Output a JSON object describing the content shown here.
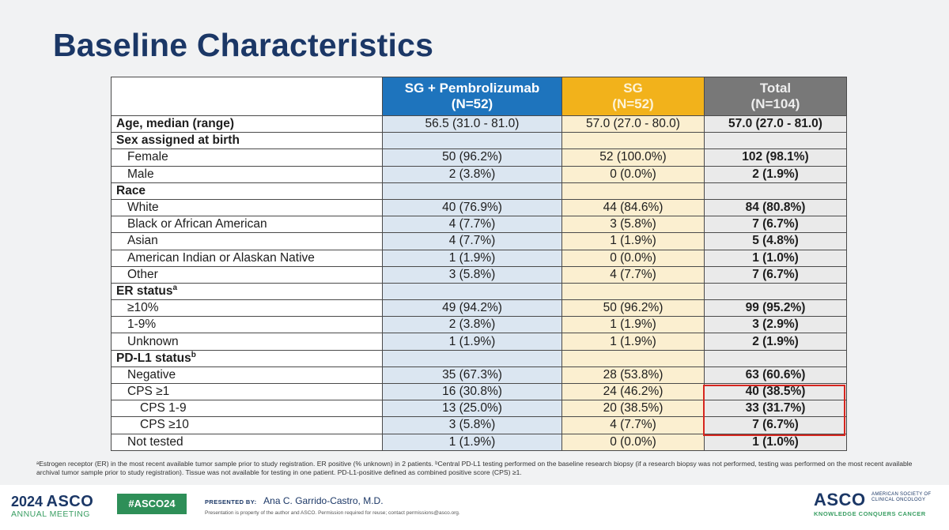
{
  "title": "Baseline Characteristics",
  "columns": [
    {
      "name": "SG + Pembrolizumab",
      "n": "(N=52)"
    },
    {
      "name": "SG",
      "n": "(N=52)"
    },
    {
      "name": "Total",
      "n": "(N=104)"
    }
  ],
  "rows": [
    {
      "label": "Age, median (range)",
      "level": "head",
      "values": [
        "56.5 (31.0 - 81.0)",
        "57.0 (27.0 - 80.0)",
        "57.0 (27.0 - 81.0)"
      ]
    },
    {
      "label": "Sex assigned at birth",
      "level": "head",
      "values": [
        "",
        "",
        ""
      ]
    },
    {
      "label": "Female",
      "level": "l1",
      "values": [
        "50 (96.2%)",
        "52 (100.0%)",
        "102 (98.1%)"
      ]
    },
    {
      "label": "Male",
      "level": "l1",
      "values": [
        "2 (3.8%)",
        "0 (0.0%)",
        "2 (1.9%)"
      ]
    },
    {
      "label": "Race",
      "level": "head",
      "values": [
        "",
        "",
        ""
      ]
    },
    {
      "label": "White",
      "level": "l1",
      "values": [
        "40 (76.9%)",
        "44 (84.6%)",
        "84 (80.8%)"
      ]
    },
    {
      "label": "Black or African American",
      "level": "l1",
      "values": [
        "4 (7.7%)",
        "3 (5.8%)",
        "7 (6.7%)"
      ]
    },
    {
      "label": "Asian",
      "level": "l1",
      "values": [
        "4 (7.7%)",
        "1 (1.9%)",
        "5 (4.8%)"
      ]
    },
    {
      "label": "American Indian or Alaskan Native",
      "level": "l1",
      "values": [
        "1 (1.9%)",
        "0 (0.0%)",
        "1 (1.0%)"
      ]
    },
    {
      "label": "Other",
      "level": "l1",
      "values": [
        "3 (5.8%)",
        "4 (7.7%)",
        "7 (6.7%)"
      ]
    },
    {
      "label": "ER status",
      "sup": "a",
      "level": "head",
      "values": [
        "",
        "",
        ""
      ]
    },
    {
      "label": "≥10%",
      "level": "l1",
      "values": [
        "49 (94.2%)",
        "50 (96.2%)",
        "99 (95.2%)"
      ]
    },
    {
      "label": "1-9%",
      "level": "l1",
      "values": [
        "2 (3.8%)",
        "1 (1.9%)",
        "3 (2.9%)"
      ]
    },
    {
      "label": "Unknown",
      "level": "l1",
      "values": [
        "1 (1.9%)",
        "1 (1.9%)",
        "2 (1.9%)"
      ]
    },
    {
      "label": "PD-L1 status",
      "sup": "b",
      "level": "head",
      "values": [
        "",
        "",
        ""
      ]
    },
    {
      "label": "Negative",
      "level": "l1",
      "values": [
        "35 (67.3%)",
        "28 (53.8%)",
        "63 (60.6%)"
      ]
    },
    {
      "label": "CPS ≥1",
      "level": "l1",
      "values": [
        "16 (30.8%)",
        "24 (46.2%)",
        "40 (38.5%)"
      ]
    },
    {
      "label": "CPS 1-9",
      "level": "l2",
      "values": [
        "13 (25.0%)",
        "20 (38.5%)",
        "33 (31.7%)"
      ]
    },
    {
      "label": "CPS ≥10",
      "level": "l2",
      "values": [
        "3 (5.8%)",
        "4 (7.7%)",
        "7 (6.7%)"
      ]
    },
    {
      "label": "Not tested",
      "level": "l1",
      "values": [
        "1 (1.9%)",
        "0 (0.0%)",
        "1 (1.0%)"
      ]
    }
  ],
  "footnote": "ᵃEstrogen receptor (ER) in the most recent available tumor sample prior to study registration. ER positive (% unknown) in 2 patients. ᵇCentral PD-L1 testing performed on the baseline research biopsy (if a research biopsy was not performed, testing was performed on the most recent available archival tumor sample prior to study registration). Tissue was not available for testing in one patient. PD-L1-positive defined as combined positive score (CPS) ≥1.",
  "footer": {
    "meeting_year": "2024",
    "meeting_brand": "ASCO",
    "meeting_sub": "ANNUAL MEETING",
    "hashtag": "#ASCO24",
    "presented_by_label": "PRESENTED BY:",
    "presenter": "Ana C. Garrido-Castro, M.D.",
    "disclaimer": "Presentation is property of the author and ASCO. Permission required for reuse; contact permissions@asco.org.",
    "right_brand": "ASCO",
    "right_society_line1": "AMERICAN SOCIETY OF",
    "right_society_line2": "CLINICAL ONCOLOGY",
    "right_tagline": "KNOWLEDGE CONQUERS CANCER"
  },
  "colors": {
    "title": "#1b3766",
    "col1_header": "#1e74bd",
    "col2_header": "#f2b21b",
    "col3_header": "#787878",
    "highlight_box": "#d6261f"
  }
}
